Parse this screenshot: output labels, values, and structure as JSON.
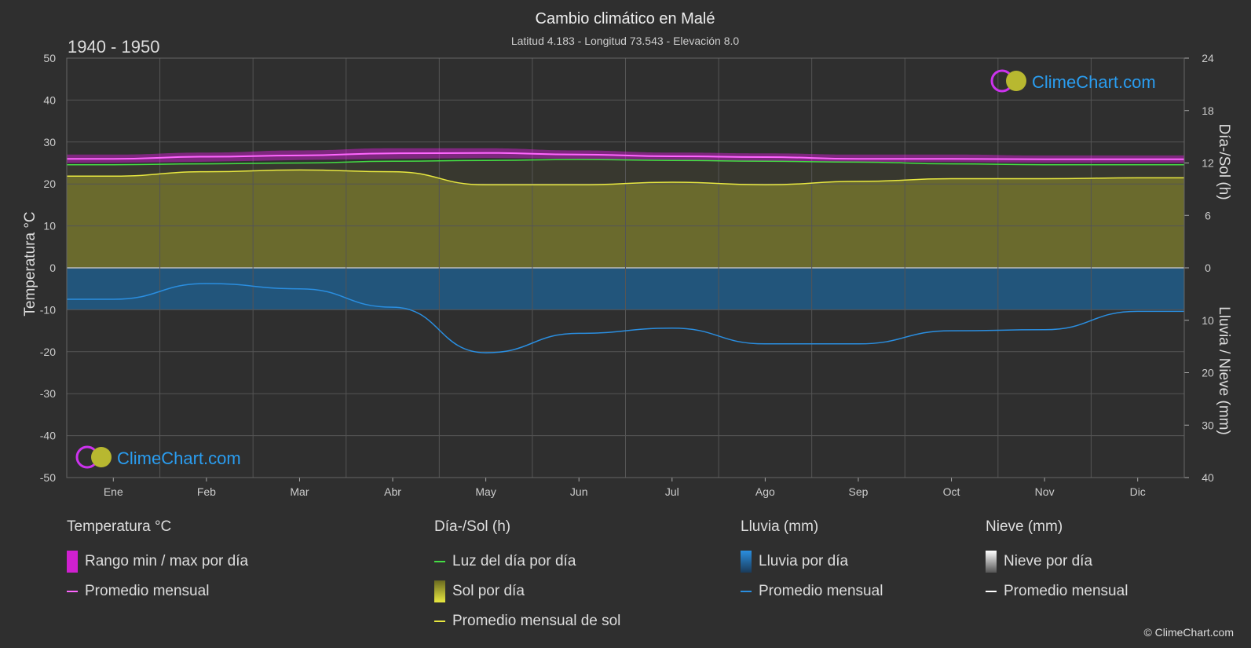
{
  "title": "Cambio climático en Malé",
  "subtitle": "Latitud 4.183 - Longitud 73.543 - Elevación 8.0",
  "period": "1940 - 1950",
  "brand": "ClimeChart.com",
  "copyright": "© ClimeChart.com",
  "colors": {
    "background": "#2f2f2f",
    "grid": "#555555",
    "temp_range": "#e020e0",
    "temp_avg": "#ff66ff",
    "daylight": "#44dd44",
    "sunshine_fill": "#8a8a2a",
    "sunshine_avg": "#e8e840",
    "rain_fill": "#1f5f8f",
    "rain_avg": "#2a8ee0",
    "brand_blue": "#2a9df0"
  },
  "chart_data": {
    "type": "area",
    "months": [
      "Ene",
      "Feb",
      "Mar",
      "Abr",
      "May",
      "Jun",
      "Jul",
      "Ago",
      "Sep",
      "Oct",
      "Nov",
      "Dic"
    ],
    "y_left": {
      "label": "Temperatura °C",
      "range": [
        -50,
        50
      ],
      "ticks": [
        50,
        40,
        30,
        20,
        10,
        0,
        -10,
        -20,
        -30,
        -40,
        -50
      ]
    },
    "y_right_top": {
      "label": "Día-/Sol (h)",
      "range": [
        0,
        24
      ],
      "ticks": [
        24,
        18,
        12,
        6,
        0
      ]
    },
    "y_right_bottom": {
      "label": "Lluvia / Nieve (mm)",
      "range": [
        0,
        40
      ],
      "ticks": [
        0,
        10,
        20,
        30,
        40
      ]
    },
    "series": [
      {
        "name": "Rango min / max por día",
        "axis": "temperature",
        "min": [
          25.0,
          25.3,
          25.7,
          26.0,
          26.2,
          26.0,
          25.8,
          25.5,
          25.3,
          25.2,
          25.0,
          25.0
        ],
        "max": [
          27.0,
          27.5,
          28.0,
          28.5,
          28.5,
          28.0,
          27.5,
          27.3,
          27.0,
          27.0,
          26.8,
          26.8
        ]
      },
      {
        "name": "Promedio mensual",
        "axis": "temperature",
        "values": [
          26.0,
          26.5,
          26.8,
          27.3,
          27.4,
          27.0,
          26.6,
          26.4,
          26.0,
          26.0,
          25.9,
          25.9
        ]
      },
      {
        "name": "Luz del día por día",
        "axis": "sun_hours",
        "values": [
          11.8,
          11.9,
          12.0,
          12.2,
          12.3,
          12.4,
          12.3,
          12.2,
          12.1,
          11.9,
          11.8,
          11.8
        ]
      },
      {
        "name": "Promedio mensual de sol",
        "axis": "sun_hours",
        "values": [
          10.5,
          11.0,
          11.2,
          11.0,
          9.5,
          9.5,
          9.8,
          9.5,
          9.9,
          10.2,
          10.2,
          10.3
        ]
      },
      {
        "name": "Promedio mensual",
        "axis": "rain_mm",
        "values": [
          6.0,
          3.0,
          4.0,
          7.5,
          16.2,
          12.5,
          11.5,
          14.5,
          14.5,
          12.0,
          11.8,
          8.3
        ]
      }
    ],
    "grid": true
  },
  "legend": {
    "temperature": {
      "title": "Temperatura °C",
      "items": [
        "Rango min / max por día",
        "Promedio mensual"
      ]
    },
    "sun": {
      "title": "Día-/Sol (h)",
      "items": [
        "Luz del día por día",
        "Sol por día",
        "Promedio mensual de sol"
      ]
    },
    "rain": {
      "title": "Lluvia (mm)",
      "items": [
        "Lluvia por día",
        "Promedio mensual"
      ]
    },
    "snow": {
      "title": "Nieve (mm)",
      "items": [
        "Nieve por día",
        "Promedio mensual"
      ]
    }
  }
}
